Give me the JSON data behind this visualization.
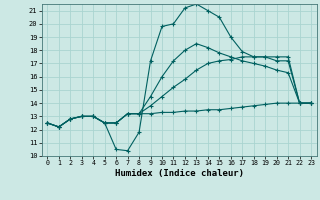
{
  "title": "",
  "xlabel": "Humidex (Indice chaleur)",
  "bg_color": "#cce8e4",
  "grid_color": "#aad4d0",
  "line_color": "#006060",
  "xlim": [
    -0.5,
    23.5
  ],
  "ylim": [
    10,
    21.5
  ],
  "xticks": [
    0,
    1,
    2,
    3,
    4,
    5,
    6,
    7,
    8,
    9,
    10,
    11,
    12,
    13,
    14,
    15,
    16,
    17,
    18,
    19,
    20,
    21,
    22,
    23
  ],
  "yticks": [
    10,
    11,
    12,
    13,
    14,
    15,
    16,
    17,
    18,
    19,
    20,
    21
  ],
  "series": [
    {
      "x": [
        0,
        1,
        2,
        3,
        4,
        5,
        6,
        7,
        8,
        9,
        10,
        11,
        12,
        13,
        14,
        15,
        16,
        17,
        18,
        19,
        20,
        21,
        22,
        23
      ],
      "y": [
        12.5,
        12.2,
        12.8,
        13.0,
        13.0,
        12.5,
        10.5,
        10.4,
        11.8,
        17.2,
        19.8,
        20.0,
        21.2,
        21.5,
        21.0,
        20.5,
        19.0,
        17.9,
        17.5,
        17.5,
        17.2,
        17.2,
        14.0,
        14.0
      ]
    },
    {
      "x": [
        0,
        1,
        2,
        3,
        4,
        5,
        6,
        7,
        8,
        9,
        10,
        11,
        12,
        13,
        14,
        15,
        16,
        17,
        18,
        19,
        20,
        21,
        22,
        23
      ],
      "y": [
        12.5,
        12.2,
        12.8,
        13.0,
        13.0,
        12.5,
        12.5,
        13.2,
        13.2,
        13.2,
        13.3,
        13.3,
        13.4,
        13.4,
        13.5,
        13.5,
        13.6,
        13.7,
        13.8,
        13.9,
        14.0,
        14.0,
        14.0,
        14.0
      ]
    },
    {
      "x": [
        0,
        1,
        2,
        3,
        4,
        5,
        6,
        7,
        8,
        9,
        10,
        11,
        12,
        13,
        14,
        15,
        16,
        17,
        18,
        19,
        20,
        21,
        22,
        23
      ],
      "y": [
        12.5,
        12.2,
        12.8,
        13.0,
        13.0,
        12.5,
        12.5,
        13.2,
        13.2,
        13.8,
        14.5,
        15.2,
        15.8,
        16.5,
        17.0,
        17.2,
        17.3,
        17.5,
        17.5,
        17.5,
        17.5,
        17.5,
        14.0,
        14.0
      ]
    },
    {
      "x": [
        0,
        1,
        2,
        3,
        4,
        5,
        6,
        7,
        8,
        9,
        10,
        11,
        12,
        13,
        14,
        15,
        16,
        17,
        18,
        19,
        20,
        21,
        22,
        23
      ],
      "y": [
        12.5,
        12.2,
        12.8,
        13.0,
        13.0,
        12.5,
        12.5,
        13.2,
        13.2,
        14.5,
        16.0,
        17.2,
        18.0,
        18.5,
        18.2,
        17.8,
        17.5,
        17.2,
        17.0,
        16.8,
        16.5,
        16.3,
        14.0,
        14.0
      ]
    }
  ]
}
